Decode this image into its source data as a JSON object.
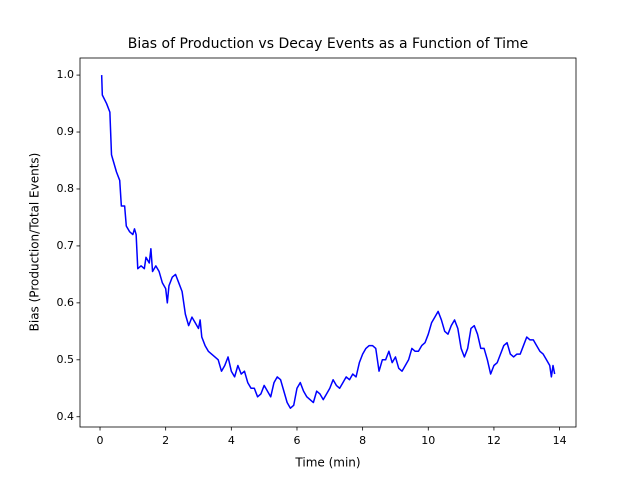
{
  "chart_data": {
    "type": "line",
    "title": "Bias of Production vs Decay Events as a Function of Time",
    "xlabel": "Time (min)",
    "ylabel": "Bias (Production/Total Events)",
    "x": [
      0.05,
      0.07,
      0.2,
      0.3,
      0.35,
      0.4,
      0.5,
      0.6,
      0.65,
      0.75,
      0.8,
      0.9,
      1.0,
      1.05,
      1.1,
      1.15,
      1.25,
      1.35,
      1.4,
      1.5,
      1.55,
      1.6,
      1.7,
      1.8,
      1.9,
      2.0,
      2.05,
      2.1,
      2.2,
      2.3,
      2.4,
      2.5,
      2.6,
      2.7,
      2.8,
      2.9,
      3.0,
      3.05,
      3.1,
      3.2,
      3.3,
      3.5,
      3.6,
      3.7,
      3.8,
      3.9,
      4.0,
      4.1,
      4.2,
      4.3,
      4.4,
      4.5,
      4.6,
      4.7,
      4.8,
      4.9,
      5.0,
      5.1,
      5.2,
      5.3,
      5.4,
      5.5,
      5.6,
      5.7,
      5.8,
      5.9,
      6.0,
      6.1,
      6.2,
      6.3,
      6.4,
      6.5,
      6.6,
      6.7,
      6.8,
      6.9,
      7.0,
      7.1,
      7.2,
      7.3,
      7.4,
      7.5,
      7.6,
      7.7,
      7.8,
      7.9,
      8.0,
      8.1,
      8.2,
      8.3,
      8.4,
      8.5,
      8.6,
      8.7,
      8.8,
      8.9,
      9.0,
      9.1,
      9.2,
      9.3,
      9.4,
      9.5,
      9.6,
      9.7,
      9.8,
      9.9,
      10.0,
      10.1,
      10.2,
      10.3,
      10.4,
      10.5,
      10.6,
      10.7,
      10.8,
      10.9,
      11.0,
      11.1,
      11.2,
      11.3,
      11.4,
      11.5,
      11.6,
      11.7,
      11.8,
      11.9,
      12.0,
      12.1,
      12.2,
      12.3,
      12.4,
      12.5,
      12.6,
      12.7,
      12.8,
      12.9,
      13.0,
      13.1,
      13.2,
      13.3,
      13.4,
      13.5,
      13.6,
      13.7,
      13.75,
      13.8,
      13.85
    ],
    "series": [
      {
        "name": "Bias",
        "color": "#0000ff",
        "values": [
          1.0,
          0.965,
          0.95,
          0.935,
          0.86,
          0.85,
          0.83,
          0.815,
          0.77,
          0.77,
          0.735,
          0.725,
          0.72,
          0.73,
          0.72,
          0.66,
          0.665,
          0.66,
          0.68,
          0.67,
          0.695,
          0.655,
          0.665,
          0.655,
          0.635,
          0.625,
          0.6,
          0.63,
          0.645,
          0.65,
          0.635,
          0.62,
          0.58,
          0.56,
          0.575,
          0.565,
          0.555,
          0.57,
          0.54,
          0.525,
          0.515,
          0.505,
          0.5,
          0.48,
          0.49,
          0.505,
          0.48,
          0.47,
          0.49,
          0.475,
          0.48,
          0.46,
          0.45,
          0.45,
          0.435,
          0.44,
          0.455,
          0.445,
          0.435,
          0.46,
          0.47,
          0.465,
          0.445,
          0.425,
          0.415,
          0.42,
          0.45,
          0.46,
          0.445,
          0.435,
          0.43,
          0.425,
          0.445,
          0.44,
          0.43,
          0.44,
          0.45,
          0.465,
          0.455,
          0.45,
          0.46,
          0.47,
          0.465,
          0.475,
          0.47,
          0.495,
          0.51,
          0.52,
          0.525,
          0.525,
          0.52,
          0.48,
          0.5,
          0.5,
          0.515,
          0.495,
          0.505,
          0.485,
          0.48,
          0.49,
          0.5,
          0.52,
          0.515,
          0.515,
          0.525,
          0.53,
          0.545,
          0.565,
          0.575,
          0.585,
          0.57,
          0.55,
          0.545,
          0.56,
          0.57,
          0.555,
          0.52,
          0.505,
          0.52,
          0.555,
          0.56,
          0.545,
          0.52,
          0.52,
          0.5,
          0.475,
          0.49,
          0.495,
          0.51,
          0.525,
          0.53,
          0.51,
          0.505,
          0.51,
          0.51,
          0.525,
          0.54,
          0.535,
          0.535,
          0.525,
          0.515,
          0.51,
          0.5,
          0.49,
          0.47,
          0.49,
          0.475
        ]
      }
    ],
    "xlim": [
      -0.61,
      14.5
    ],
    "ylim": [
      0.382,
      1.03
    ],
    "xticks": [
      0,
      2,
      4,
      6,
      8,
      10,
      12,
      14
    ],
    "yticks": [
      0.4,
      0.5,
      0.6,
      0.7,
      0.8,
      0.9,
      {
        "value": 1,
        "label": "1.0"
      }
    ]
  }
}
